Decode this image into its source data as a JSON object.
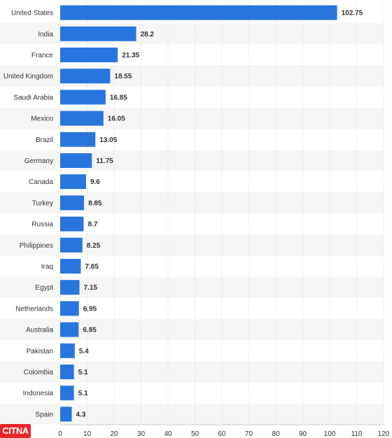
{
  "chart_data": {
    "type": "bar",
    "orientation": "horizontal",
    "categories": [
      "United States",
      "India",
      "France",
      "United Kingdom",
      "Saudi Arabia",
      "Mexico",
      "Brazil",
      "Germany",
      "Canada",
      "Turkey",
      "Russia",
      "Philippines",
      "Iraq",
      "Egypt",
      "Netherlands",
      "Australia",
      "Pakistan",
      "Colombia",
      "Indonesia",
      "Spain"
    ],
    "values": [
      102.75,
      28.2,
      21.35,
      18.55,
      16.85,
      16.05,
      13.05,
      11.75,
      9.6,
      8.85,
      8.7,
      8.25,
      7.65,
      7.15,
      6.95,
      6.85,
      5.4,
      5.1,
      5.1,
      4.3
    ],
    "value_labels": [
      "102.75",
      "28.2",
      "21.35",
      "18.55",
      "16.85",
      "16.05",
      "13.05",
      "11.75",
      "9.6",
      "8.85",
      "8.7",
      "8.25",
      "7.65",
      "7.15",
      "6.95",
      "6.85",
      "5.4",
      "5.1",
      "5.1",
      "4.3"
    ],
    "xlim": [
      0,
      120
    ],
    "x_ticks": [
      0,
      10,
      20,
      30,
      40,
      50,
      60,
      70,
      80,
      90,
      100,
      110,
      120
    ],
    "title": "",
    "xlabel": "",
    "ylabel": "",
    "grid": true,
    "bar_color": "#2876dd",
    "row_stripe_color": "#f6f6f6",
    "grid_color": "#e6e6e6"
  },
  "logo": {
    "text": "CITNA",
    "color": "#e8262a"
  }
}
